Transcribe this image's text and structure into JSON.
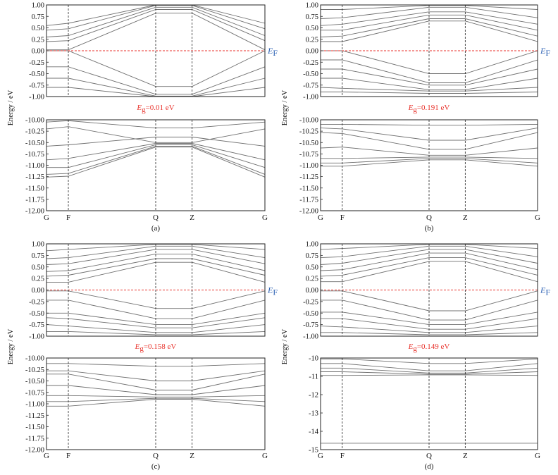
{
  "chart_data": [
    {
      "type": "line",
      "panel_label": "(a)",
      "ylabel": "Energy / eV",
      "kpoints": [
        "G",
        "F",
        "Q",
        "Z",
        "G"
      ],
      "fermi_label": {
        "main": "E",
        "sub": "F"
      },
      "gap_label": {
        "main": "E",
        "sub": "g",
        "text": "=0.01 eV"
      },
      "axes": [
        {
          "ylim": [
            -1.0,
            1.0
          ],
          "yticks": [
            "1.00",
            "0.75",
            "0.50",
            "0.25",
            "0.00",
            "-0.25",
            "-0.50",
            "-0.75",
            "-1.00"
          ],
          "fermi_level": 0.0,
          "bands": [
            [
              0.02,
              0.02,
              0.82,
              0.82,
              0.02
            ],
            [
              0.0,
              0.0,
              -0.78,
              -0.78,
              0.0
            ],
            [
              0.2,
              0.22,
              0.9,
              0.9,
              0.22
            ],
            [
              0.3,
              0.33,
              0.95,
              0.95,
              0.33
            ],
            [
              0.45,
              0.48,
              0.99,
              0.99,
              0.48
            ],
            [
              0.55,
              0.6,
              1.0,
              1.0,
              0.6
            ],
            [
              -0.35,
              -0.35,
              -0.95,
              -0.95,
              -0.35
            ],
            [
              -0.6,
              -0.6,
              -0.99,
              -0.99,
              -0.6
            ],
            [
              -0.8,
              -0.8,
              -1.0,
              -1.0,
              -0.8
            ]
          ]
        },
        {
          "ylim": [
            -12.0,
            -10.0
          ],
          "yticks": [
            "-10.00",
            "-10.25",
            "-10.50",
            "-10.75",
            "-11.00",
            "-11.25",
            "-11.50",
            "-11.75",
            "-12.00"
          ],
          "bands": [
            [
              -10.2,
              -10.15,
              -10.5,
              -10.5,
              -10.2
            ],
            [
              -10.58,
              -10.55,
              -10.38,
              -10.38,
              -10.58
            ],
            [
              -10.88,
              -10.85,
              -10.52,
              -10.52,
              -10.88
            ],
            [
              -11.05,
              -11.05,
              -10.55,
              -10.55,
              -11.05
            ],
            [
              -11.2,
              -11.18,
              -10.58,
              -10.58,
              -11.2
            ],
            [
              -11.26,
              -11.24,
              -10.6,
              -10.6,
              -11.26
            ],
            [
              -10.05,
              -10.02,
              -10.18,
              -10.18,
              -10.05
            ]
          ]
        }
      ]
    },
    {
      "type": "line",
      "panel_label": "(b)",
      "ylabel": "Energy / eV",
      "kpoints": [
        "G",
        "F",
        "Q",
        "Z",
        "G"
      ],
      "fermi_label": {
        "main": "E",
        "sub": "F"
      },
      "gap_label": {
        "main": "E",
        "sub": "g",
        "text": "=0.191 eV"
      },
      "axes": [
        {
          "ylim": [
            -1.0,
            1.0
          ],
          "yticks": [
            "1.00",
            "0.75",
            "0.50",
            "0.25",
            "0.00",
            "-0.25",
            "-0.50",
            "-0.75",
            "-1.00"
          ],
          "fermi_level": 0.0,
          "bands": [
            [
              0.0,
              0.0,
              -0.5,
              -0.5,
              0.0
            ],
            [
              -0.2,
              -0.2,
              -0.7,
              -0.7,
              -0.2
            ],
            [
              -0.4,
              -0.4,
              -0.75,
              -0.75,
              -0.4
            ],
            [
              -0.6,
              -0.6,
              -0.85,
              -0.85,
              -0.6
            ],
            [
              -0.8,
              -0.82,
              -0.88,
              -0.88,
              -0.8
            ],
            [
              -0.9,
              -0.9,
              -0.93,
              -0.93,
              -0.9
            ],
            [
              0.2,
              0.2,
              0.65,
              0.65,
              0.2
            ],
            [
              0.3,
              0.32,
              0.7,
              0.7,
              0.32
            ],
            [
              0.45,
              0.45,
              0.78,
              0.78,
              0.45
            ],
            [
              0.55,
              0.58,
              0.85,
              0.85,
              0.58
            ],
            [
              0.7,
              0.72,
              0.95,
              0.95,
              0.72
            ],
            [
              0.9,
              0.9,
              0.99,
              0.99,
              0.9
            ]
          ]
        },
        {
          "ylim": [
            -12.0,
            -10.0
          ],
          "yticks": [
            "-10.00",
            "-10.25",
            "-10.50",
            "-10.75",
            "-11.00",
            "-11.25",
            "-11.50",
            "-11.75",
            "-12.00"
          ],
          "bands": [
            [
              -10.1,
              -10.1,
              -10.12,
              -10.12,
              -10.1
            ],
            [
              -10.18,
              -10.2,
              -10.45,
              -10.45,
              -10.18
            ],
            [
              -10.28,
              -10.3,
              -10.65,
              -10.65,
              -10.28
            ],
            [
              -10.62,
              -10.6,
              -10.78,
              -10.78,
              -10.62
            ],
            [
              -10.85,
              -10.85,
              -10.82,
              -10.82,
              -10.85
            ],
            [
              -10.95,
              -10.95,
              -10.85,
              -10.85,
              -10.95
            ],
            [
              -11.02,
              -11.02,
              -10.88,
              -10.88,
              -11.02
            ]
          ]
        }
      ]
    },
    {
      "type": "line",
      "panel_label": "(c)",
      "ylabel": "Energy / eV",
      "kpoints": [
        "G",
        "F",
        "Q",
        "Z",
        "G"
      ],
      "fermi_label": {
        "main": "E",
        "sub": "F"
      },
      "gap_label": {
        "main": "E",
        "sub": "g",
        "text": "=0.158 eV"
      },
      "axes": [
        {
          "ylim": [
            -1.0,
            1.0
          ],
          "yticks": [
            "1.00",
            "0.75",
            "0.50",
            "0.25",
            "0.00",
            "-0.25",
            "-0.50",
            "-0.75",
            "-1.00"
          ],
          "fermi_level": 0.0,
          "bands": [
            [
              -0.02,
              -0.02,
              -0.4,
              -0.4,
              -0.02
            ],
            [
              -0.22,
              -0.22,
              -0.62,
              -0.62,
              -0.22
            ],
            [
              -0.5,
              -0.5,
              -0.75,
              -0.75,
              -0.5
            ],
            [
              -0.6,
              -0.62,
              -0.82,
              -0.82,
              -0.6
            ],
            [
              -0.75,
              -0.78,
              -0.92,
              -0.92,
              -0.75
            ],
            [
              -0.9,
              -0.9,
              -0.97,
              -0.97,
              -0.9
            ],
            [
              0.17,
              0.17,
              0.6,
              0.6,
              0.17
            ],
            [
              0.3,
              0.32,
              0.68,
              0.68,
              0.32
            ],
            [
              0.4,
              0.42,
              0.78,
              0.78,
              0.42
            ],
            [
              0.55,
              0.57,
              0.88,
              0.88,
              0.57
            ],
            [
              0.68,
              0.7,
              0.95,
              0.95,
              0.7
            ],
            [
              0.85,
              0.88,
              0.99,
              0.99,
              0.88
            ]
          ]
        },
        {
          "ylim": [
            -12.0,
            -10.0
          ],
          "yticks": [
            "-10.00",
            "-10.25",
            "-10.50",
            "-10.75",
            "-11.00",
            "-11.25",
            "-11.50",
            "-11.75",
            "-12.00"
          ],
          "bands": [
            [
              -10.12,
              -10.12,
              -10.18,
              -10.18,
              -10.12
            ],
            [
              -10.28,
              -10.28,
              -10.5,
              -10.5,
              -10.28
            ],
            [
              -10.35,
              -10.35,
              -10.7,
              -10.7,
              -10.35
            ],
            [
              -10.6,
              -10.6,
              -10.8,
              -10.8,
              -10.6
            ],
            [
              -10.82,
              -10.82,
              -10.85,
              -10.85,
              -10.82
            ],
            [
              -10.95,
              -10.95,
              -10.88,
              -10.88,
              -10.95
            ],
            [
              -11.05,
              -11.05,
              -10.9,
              -10.9,
              -11.05
            ]
          ]
        }
      ]
    },
    {
      "type": "line",
      "panel_label": "(d)",
      "ylabel": "Energy / eV",
      "kpoints": [
        "G",
        "F",
        "Q",
        "Z",
        "G"
      ],
      "fermi_label": {
        "main": "E",
        "sub": "F"
      },
      "gap_label": {
        "main": "E",
        "sub": "g",
        "text": "=0.149 eV"
      },
      "axes": [
        {
          "ylim": [
            -1.0,
            1.0
          ],
          "yticks": [
            "1.00",
            "0.75",
            "0.50",
            "0.25",
            "0.00",
            "-0.25",
            "-0.50",
            "-0.75",
            "-1.00"
          ],
          "fermi_level": 0.0,
          "bands": [
            [
              -0.02,
              -0.02,
              -0.45,
              -0.45,
              -0.02
            ],
            [
              -0.22,
              -0.22,
              -0.65,
              -0.65,
              -0.22
            ],
            [
              -0.48,
              -0.48,
              -0.75,
              -0.75,
              -0.48
            ],
            [
              -0.62,
              -0.62,
              -0.85,
              -0.85,
              -0.62
            ],
            [
              -0.78,
              -0.8,
              -0.92,
              -0.92,
              -0.78
            ],
            [
              -0.92,
              -0.92,
              -0.97,
              -0.97,
              -0.92
            ],
            [
              0.18,
              0.18,
              0.62,
              0.62,
              0.18
            ],
            [
              0.3,
              0.32,
              0.7,
              0.7,
              0.32
            ],
            [
              0.42,
              0.44,
              0.8,
              0.8,
              0.44
            ],
            [
              0.55,
              0.58,
              0.88,
              0.88,
              0.58
            ],
            [
              0.7,
              0.72,
              0.95,
              0.95,
              0.72
            ],
            [
              0.88,
              0.9,
              0.99,
              0.99,
              0.9
            ]
          ]
        },
        {
          "ylim": [
            -15.0,
            -10.0
          ],
          "yticks": [
            "-10",
            "-11",
            "-12",
            "-13",
            "-14",
            "-15"
          ],
          "bands": [
            [
              -10.05,
              -10.05,
              -10.3,
              -10.3,
              -10.05
            ],
            [
              -10.3,
              -10.3,
              -10.7,
              -10.7,
              -10.3
            ],
            [
              -10.55,
              -10.55,
              -10.82,
              -10.82,
              -10.55
            ],
            [
              -10.75,
              -10.75,
              -10.88,
              -10.88,
              -10.75
            ],
            [
              -10.95,
              -10.95,
              -10.92,
              -10.92,
              -10.95
            ],
            [
              -14.65,
              -14.65,
              -14.65,
              -14.65,
              -14.65
            ]
          ]
        }
      ]
    }
  ]
}
